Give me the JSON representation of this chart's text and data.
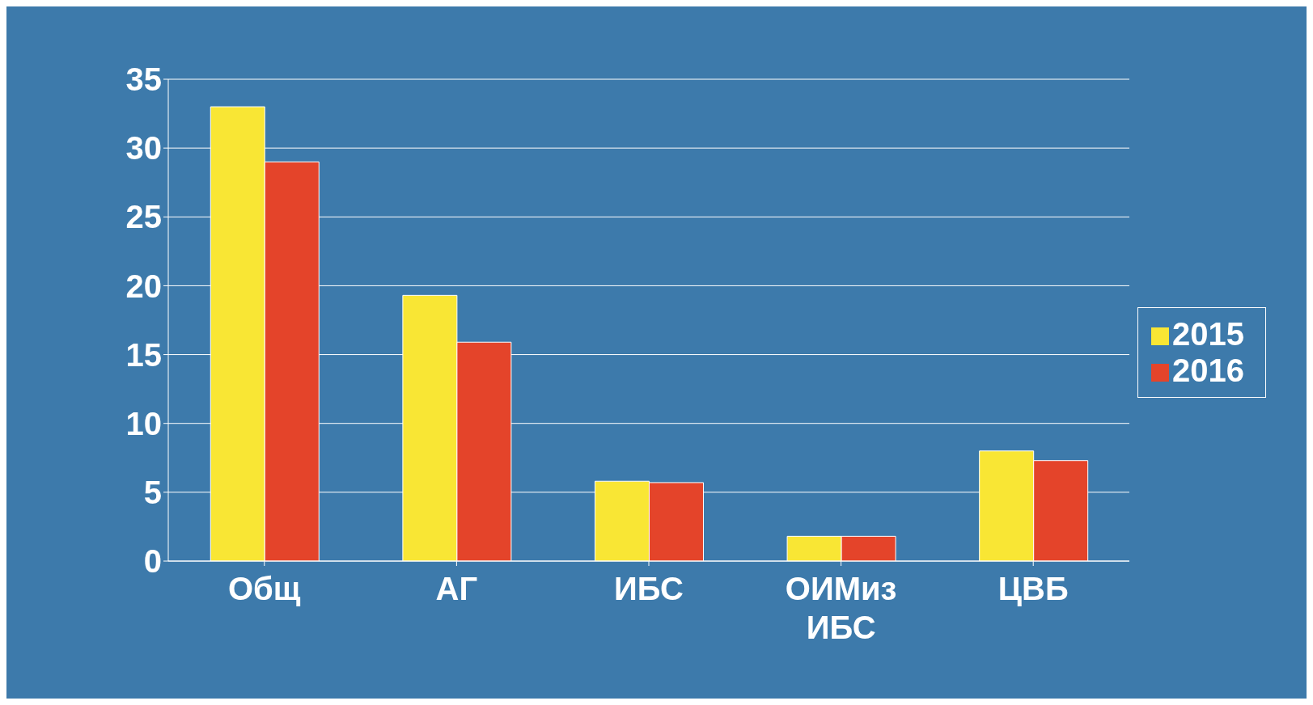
{
  "chart_data": {
    "type": "bar",
    "categories": [
      "Общ",
      "АГ",
      "ИБС",
      "ОИМиз ИБС",
      "ЦВБ"
    ],
    "series": [
      {
        "name": "2015",
        "color": "#f9e634",
        "values": [
          33,
          19.3,
          5.8,
          1.8,
          8
        ]
      },
      {
        "name": "2016",
        "color": "#e4442a",
        "values": [
          29,
          15.9,
          5.7,
          1.8,
          7.3
        ]
      }
    ],
    "ylim": [
      0,
      35
    ],
    "yticks": [
      0,
      5,
      10,
      15,
      20,
      25,
      30,
      35
    ],
    "grid": "y",
    "legend": "right"
  }
}
